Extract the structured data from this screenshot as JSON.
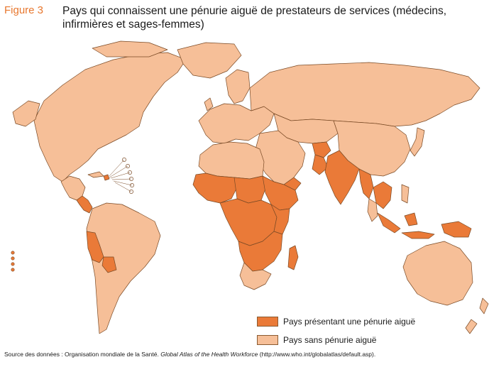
{
  "figure": {
    "label": "Figure 3",
    "title": "Pays qui connaissent une pénurie aiguë de prestateurs de services (médecins, infirmières et sages-femmes)"
  },
  "colors": {
    "shortage": "#ea7a38",
    "no_shortage": "#f6bf98",
    "border": "#7a4a25",
    "ocean": "#ffffff"
  },
  "legend": {
    "items": [
      {
        "label": "Pays présentant une pénurie aiguë",
        "color": "#ea7a38"
      },
      {
        "label": "Pays sans pénurie aiguë",
        "color": "#f6bf98"
      }
    ]
  },
  "source": {
    "prefix": "Source des données : Organisation mondiale de la Santé. ",
    "title": "Global Atlas of the Health Workforce",
    "suffix": " (http://www.who.int/globalatlas/default.asp)."
  }
}
